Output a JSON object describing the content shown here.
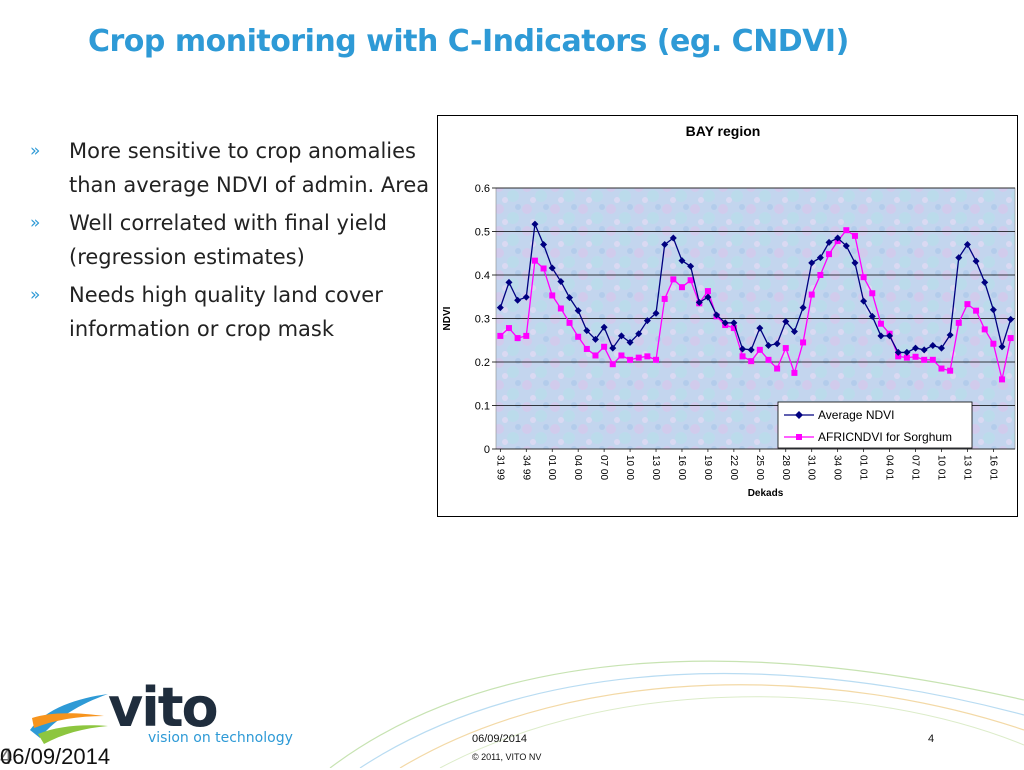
{
  "slide": {
    "title": "Crop monitoring with C-Indicators (eg. CNDVI)",
    "bullet_marker": "»",
    "bullets": [
      "More sensitive to crop anomalies than average NDVI of admin. Area",
      "Well correlated with final yield (regression estimates)",
      "Needs high quality land cover information or crop mask"
    ]
  },
  "footer": {
    "date_large": "06/09/2014",
    "date_ghost": "4",
    "date": "06/09/2014",
    "copyright": "© 2011, VITO NV",
    "page": "4"
  },
  "logo": {
    "word": "vito",
    "tagline": "vision on technology"
  },
  "colors": {
    "title": "#2e9ad6",
    "series_ndvi": "#000080",
    "series_cndvi": "#ff00ff",
    "logo_orange": "#f7941d",
    "logo_blue": "#2e9ad6",
    "logo_green": "#8dc63f"
  },
  "chart_data": {
    "type": "line",
    "title": "BAY region",
    "xlabel": "Dekads",
    "ylabel": "NDVI",
    "ylim": [
      0,
      0.6
    ],
    "yticks": [
      "0",
      "0.1",
      "0.2",
      "0.3",
      "0.4",
      "0.5",
      "0.6"
    ],
    "grid": "horizontal",
    "legend_position": "bottom-right",
    "x_tick_labels": [
      "31 99",
      "34 99",
      "01 00",
      "04 00",
      "07 00",
      "10 00",
      "13 00",
      "16 00",
      "19 00",
      "22 00",
      "25 00",
      "28 00",
      "31 00",
      "34 00",
      "01 01",
      "04 01",
      "07 01",
      "10 01",
      "13 01",
      "16 01"
    ],
    "series": [
      {
        "name": "Average NDVI",
        "marker": "diamond",
        "values": [
          0.325,
          0.383,
          0.342,
          0.349,
          0.517,
          0.47,
          0.416,
          0.385,
          0.348,
          0.318,
          0.272,
          0.252,
          0.28,
          0.232,
          0.26,
          0.245,
          0.265,
          0.295,
          0.312,
          0.47,
          0.485,
          0.433,
          0.42,
          0.337,
          0.349,
          0.308,
          0.29,
          0.29,
          0.23,
          0.228,
          0.278,
          0.238,
          0.242,
          0.293,
          0.27,
          0.325,
          0.428,
          0.44,
          0.475,
          0.485,
          0.467,
          0.428,
          0.34,
          0.305,
          0.26,
          0.26,
          0.222,
          0.222,
          0.232,
          0.228,
          0.238,
          0.232,
          0.262,
          0.44,
          0.47,
          0.432,
          0.383,
          0.32,
          0.235,
          0.298
        ]
      },
      {
        "name": "AFRICNDVI for Sorghum",
        "marker": "square",
        "values": [
          0.26,
          0.278,
          0.255,
          0.26,
          0.433,
          0.415,
          0.353,
          0.323,
          0.29,
          0.258,
          0.23,
          0.215,
          0.235,
          0.195,
          0.215,
          0.205,
          0.21,
          0.213,
          0.205,
          0.345,
          0.39,
          0.372,
          0.388,
          0.335,
          0.363,
          0.305,
          0.285,
          0.278,
          0.213,
          0.202,
          0.228,
          0.205,
          0.185,
          0.232,
          0.175,
          0.245,
          0.355,
          0.4,
          0.448,
          0.478,
          0.503,
          0.49,
          0.395,
          0.358,
          0.288,
          0.265,
          0.213,
          0.21,
          0.212,
          0.205,
          0.205,
          0.185,
          0.18,
          0.29,
          0.333,
          0.318,
          0.275,
          0.242,
          0.16,
          0.255
        ]
      }
    ]
  }
}
